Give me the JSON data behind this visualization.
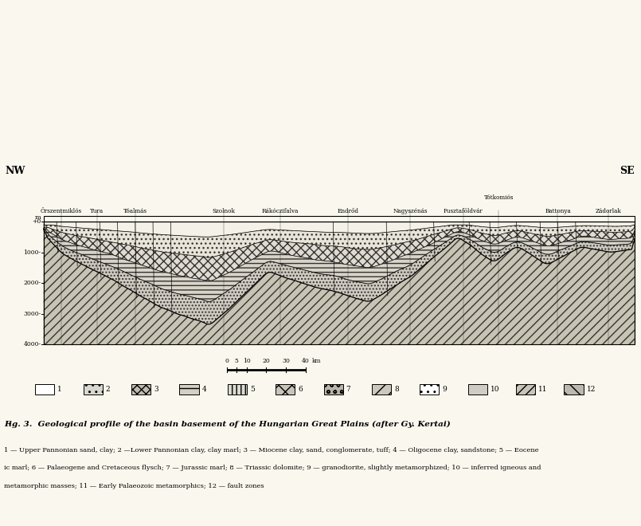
{
  "bg_color": "#faf8ee",
  "fig_width": 8.05,
  "fig_height": 6.6,
  "title": "ig. 3.  Geological profile of the basin basement of the Hungarian Great Plains (after Gy. Kertai)",
  "caption_line1": "1 — Upper Pannonian sand, clay; 2 —Lower Pannonian clay, clay marl; 3 — Miocene clay, sand, conglomerate, tuff; 4 — Oligocene clay, sandstone; 5 — Eocene",
  "caption_line2": "ic marl; 6 — Palaeogene and Cretaceous flysch; 7 — Jurassic marl; 8 — Triassic dolomite; 9 — granodiorite, slightly metamorphized; 10 — inferred igneous and",
  "caption_line3": "metamorphic masses; 11 — Early Palaeozoic metamorphics; 12 — fault zones",
  "nw_label": "NW",
  "se_label": "SE",
  "y_tick_depths": [
    0,
    -1000,
    -2000,
    -3000,
    -4000
  ],
  "y_tick_labels": [
    "+0",
    "1000-",
    "2000-",
    "3000-",
    "4000-"
  ],
  "location_labels": [
    "Örszentmiklós",
    "Tura",
    "Tóalmás",
    "Szolnok",
    "Rákóczifalva",
    "Endrőd",
    "Nagyszénás",
    "Pusztaföldvár",
    "Tótkomiós",
    "Battonya",
    "Zádorlak"
  ],
  "location_x": [
    0.03,
    0.09,
    0.155,
    0.305,
    0.4,
    0.515,
    0.62,
    0.71,
    0.77,
    0.87,
    0.955
  ],
  "totokmios_elevated": true,
  "depth_min": -4000,
  "depth_max": 200,
  "section_km": 300
}
